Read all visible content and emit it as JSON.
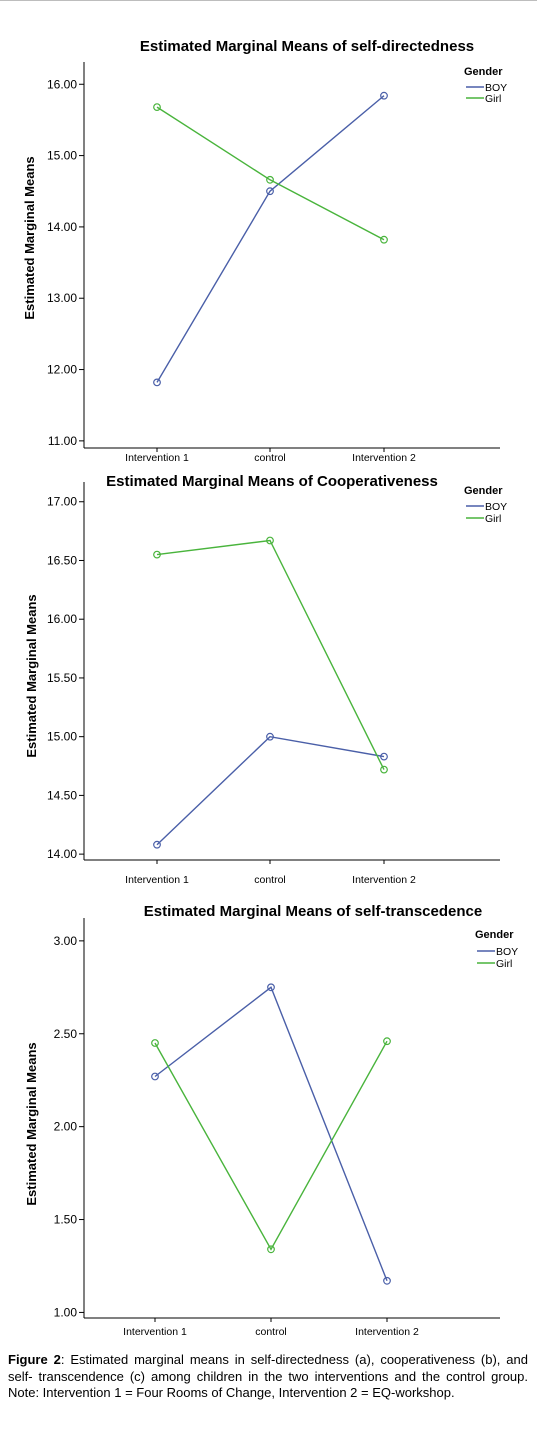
{
  "chart_data": [
    {
      "type": "line",
      "title": "Estimated  Marginal Means of self-directedness",
      "ylabel": "Estimated Marginal Means",
      "xlabel": "",
      "categories": [
        "Intervention 1",
        "control",
        "Intervention 2"
      ],
      "ylim": [
        10.9,
        16.2
      ],
      "yticks": [
        "11.00",
        "12.00",
        "13.00",
        "14.00",
        "15.00",
        "16.00"
      ],
      "ytick_values": [
        11,
        12,
        13,
        14,
        15,
        16
      ],
      "legend_title": "Gender",
      "legend_position": "top-right",
      "series": [
        {
          "name": "BOY",
          "color": "#4a5fa8",
          "values": [
            11.82,
            14.5,
            15.84
          ]
        },
        {
          "name": "Girl",
          "color": "#49b43c",
          "values": [
            15.68,
            14.66,
            13.82
          ]
        }
      ]
    },
    {
      "type": "line",
      "title": "Estimated  Marginal Means of Cooperativeness",
      "ylabel": "Estimated Marginal Means",
      "xlabel": "",
      "categories": [
        "Intervention 1",
        "control",
        "Intervention 2"
      ],
      "ylim": [
        13.95,
        17.1
      ],
      "yticks": [
        "14.00",
        "14.50",
        "15.00",
        "15.50",
        "16.00",
        "16.50",
        "17.00"
      ],
      "ytick_values": [
        14,
        14.5,
        15,
        15.5,
        16,
        16.5,
        17
      ],
      "legend_title": "Gender",
      "legend_position": "top-right",
      "series": [
        {
          "name": "BOY",
          "color": "#4a5fa8",
          "values": [
            14.08,
            15.0,
            14.83
          ]
        },
        {
          "name": "Girl",
          "color": "#49b43c",
          "values": [
            16.55,
            16.67,
            14.72
          ]
        }
      ]
    },
    {
      "type": "line",
      "title": "Estimated  Marginal Means of self-transcedence",
      "ylabel": "Estimated Marginal Means",
      "xlabel": "",
      "categories": [
        "Intervention 1",
        "control",
        "Intervention 2"
      ],
      "ylim": [
        0.97,
        3.08
      ],
      "yticks": [
        "1.00",
        "1.50",
        "2.00",
        "2.50",
        "3.00"
      ],
      "ytick_values": [
        1,
        1.5,
        2,
        2.5,
        3
      ],
      "legend_title": "Gender",
      "legend_position": "top-right",
      "series": [
        {
          "name": "BOY",
          "color": "#4a5fa8",
          "values": [
            2.27,
            2.75,
            1.17
          ]
        },
        {
          "name": "Girl",
          "color": "#49b43c",
          "values": [
            2.45,
            1.34,
            2.46
          ]
        }
      ]
    }
  ],
  "caption": {
    "label": "Figure 2",
    "text": ":  Estimated marginal means in self-directedness (a), cooperativeness (b), and self- transcendence (c) among children in the two interventions and the control group. Note: Intervention 1 = Four Rooms of Change, Intervention 2 = EQ-workshop."
  }
}
